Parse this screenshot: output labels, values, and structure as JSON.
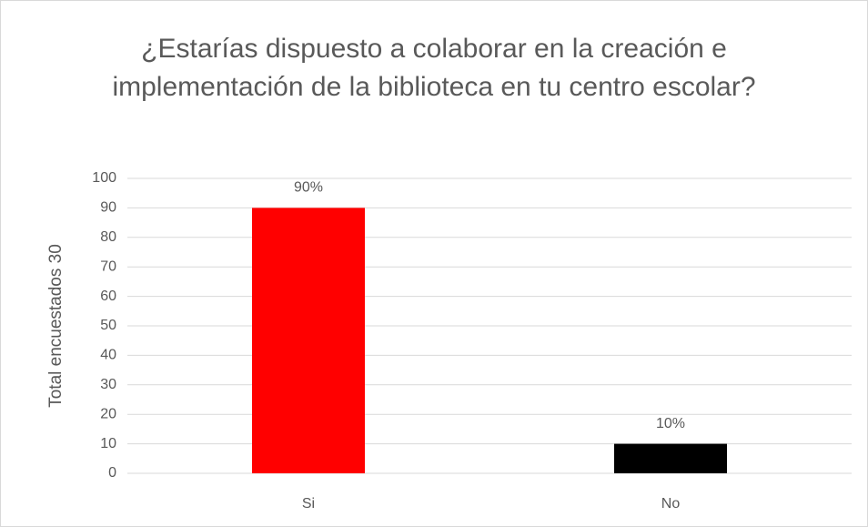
{
  "chart_data": {
    "type": "bar",
    "title": "¿Estarías dispuesto a colaborar en la creación e implementación de la biblioteca en tu centro escolar?",
    "y_label": "Total encuestados 30",
    "categories": [
      "Si",
      "No"
    ],
    "values": [
      90,
      10
    ],
    "value_labels": [
      "90%",
      "10%"
    ],
    "colors": [
      "#ff0000",
      "#000000"
    ],
    "ylim": [
      0,
      100
    ],
    "yticks": [
      0,
      10,
      20,
      30,
      40,
      50,
      60,
      70,
      80,
      90,
      100
    ],
    "grid": true
  }
}
